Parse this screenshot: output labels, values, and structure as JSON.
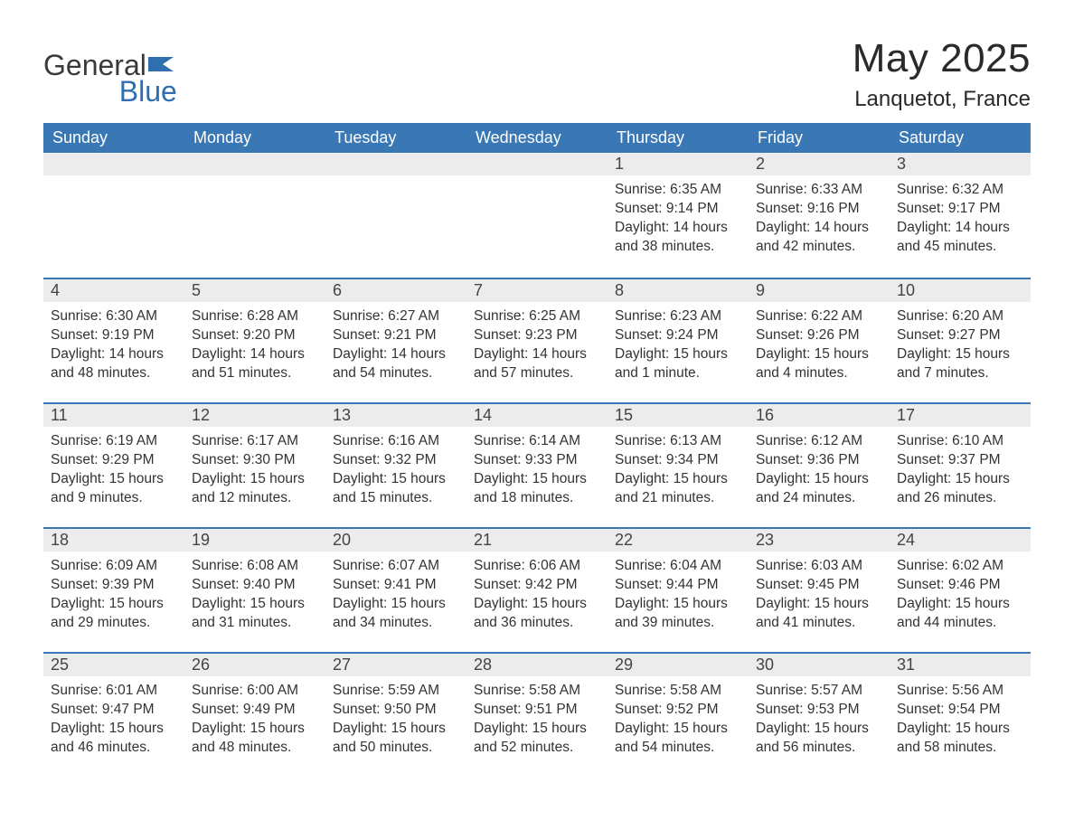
{
  "logo": {
    "line1": "General",
    "line2": "Blue"
  },
  "title": "May 2025",
  "location": "Lanquetot, France",
  "colors": {
    "header_bg": "#3a78b5",
    "header_text": "#ffffff",
    "daynum_bg": "#ececec",
    "border_top": "#3a78b5",
    "body_text": "#333333",
    "logo_gray": "#3a3a3a",
    "logo_blue": "#2f6fb0"
  },
  "weekdays": [
    "Sunday",
    "Monday",
    "Tuesday",
    "Wednesday",
    "Thursday",
    "Friday",
    "Saturday"
  ],
  "weeks": [
    [
      null,
      null,
      null,
      null,
      {
        "n": "1",
        "sr": "Sunrise: 6:35 AM",
        "ss": "Sunset: 9:14 PM",
        "dl1": "Daylight: 14 hours",
        "dl2": "and 38 minutes."
      },
      {
        "n": "2",
        "sr": "Sunrise: 6:33 AM",
        "ss": "Sunset: 9:16 PM",
        "dl1": "Daylight: 14 hours",
        "dl2": "and 42 minutes."
      },
      {
        "n": "3",
        "sr": "Sunrise: 6:32 AM",
        "ss": "Sunset: 9:17 PM",
        "dl1": "Daylight: 14 hours",
        "dl2": "and 45 minutes."
      }
    ],
    [
      {
        "n": "4",
        "sr": "Sunrise: 6:30 AM",
        "ss": "Sunset: 9:19 PM",
        "dl1": "Daylight: 14 hours",
        "dl2": "and 48 minutes."
      },
      {
        "n": "5",
        "sr": "Sunrise: 6:28 AM",
        "ss": "Sunset: 9:20 PM",
        "dl1": "Daylight: 14 hours",
        "dl2": "and 51 minutes."
      },
      {
        "n": "6",
        "sr": "Sunrise: 6:27 AM",
        "ss": "Sunset: 9:21 PM",
        "dl1": "Daylight: 14 hours",
        "dl2": "and 54 minutes."
      },
      {
        "n": "7",
        "sr": "Sunrise: 6:25 AM",
        "ss": "Sunset: 9:23 PM",
        "dl1": "Daylight: 14 hours",
        "dl2": "and 57 minutes."
      },
      {
        "n": "8",
        "sr": "Sunrise: 6:23 AM",
        "ss": "Sunset: 9:24 PM",
        "dl1": "Daylight: 15 hours",
        "dl2": "and 1 minute."
      },
      {
        "n": "9",
        "sr": "Sunrise: 6:22 AM",
        "ss": "Sunset: 9:26 PM",
        "dl1": "Daylight: 15 hours",
        "dl2": "and 4 minutes."
      },
      {
        "n": "10",
        "sr": "Sunrise: 6:20 AM",
        "ss": "Sunset: 9:27 PM",
        "dl1": "Daylight: 15 hours",
        "dl2": "and 7 minutes."
      }
    ],
    [
      {
        "n": "11",
        "sr": "Sunrise: 6:19 AM",
        "ss": "Sunset: 9:29 PM",
        "dl1": "Daylight: 15 hours",
        "dl2": "and 9 minutes."
      },
      {
        "n": "12",
        "sr": "Sunrise: 6:17 AM",
        "ss": "Sunset: 9:30 PM",
        "dl1": "Daylight: 15 hours",
        "dl2": "and 12 minutes."
      },
      {
        "n": "13",
        "sr": "Sunrise: 6:16 AM",
        "ss": "Sunset: 9:32 PM",
        "dl1": "Daylight: 15 hours",
        "dl2": "and 15 minutes."
      },
      {
        "n": "14",
        "sr": "Sunrise: 6:14 AM",
        "ss": "Sunset: 9:33 PM",
        "dl1": "Daylight: 15 hours",
        "dl2": "and 18 minutes."
      },
      {
        "n": "15",
        "sr": "Sunrise: 6:13 AM",
        "ss": "Sunset: 9:34 PM",
        "dl1": "Daylight: 15 hours",
        "dl2": "and 21 minutes."
      },
      {
        "n": "16",
        "sr": "Sunrise: 6:12 AM",
        "ss": "Sunset: 9:36 PM",
        "dl1": "Daylight: 15 hours",
        "dl2": "and 24 minutes."
      },
      {
        "n": "17",
        "sr": "Sunrise: 6:10 AM",
        "ss": "Sunset: 9:37 PM",
        "dl1": "Daylight: 15 hours",
        "dl2": "and 26 minutes."
      }
    ],
    [
      {
        "n": "18",
        "sr": "Sunrise: 6:09 AM",
        "ss": "Sunset: 9:39 PM",
        "dl1": "Daylight: 15 hours",
        "dl2": "and 29 minutes."
      },
      {
        "n": "19",
        "sr": "Sunrise: 6:08 AM",
        "ss": "Sunset: 9:40 PM",
        "dl1": "Daylight: 15 hours",
        "dl2": "and 31 minutes."
      },
      {
        "n": "20",
        "sr": "Sunrise: 6:07 AM",
        "ss": "Sunset: 9:41 PM",
        "dl1": "Daylight: 15 hours",
        "dl2": "and 34 minutes."
      },
      {
        "n": "21",
        "sr": "Sunrise: 6:06 AM",
        "ss": "Sunset: 9:42 PM",
        "dl1": "Daylight: 15 hours",
        "dl2": "and 36 minutes."
      },
      {
        "n": "22",
        "sr": "Sunrise: 6:04 AM",
        "ss": "Sunset: 9:44 PM",
        "dl1": "Daylight: 15 hours",
        "dl2": "and 39 minutes."
      },
      {
        "n": "23",
        "sr": "Sunrise: 6:03 AM",
        "ss": "Sunset: 9:45 PM",
        "dl1": "Daylight: 15 hours",
        "dl2": "and 41 minutes."
      },
      {
        "n": "24",
        "sr": "Sunrise: 6:02 AM",
        "ss": "Sunset: 9:46 PM",
        "dl1": "Daylight: 15 hours",
        "dl2": "and 44 minutes."
      }
    ],
    [
      {
        "n": "25",
        "sr": "Sunrise: 6:01 AM",
        "ss": "Sunset: 9:47 PM",
        "dl1": "Daylight: 15 hours",
        "dl2": "and 46 minutes."
      },
      {
        "n": "26",
        "sr": "Sunrise: 6:00 AM",
        "ss": "Sunset: 9:49 PM",
        "dl1": "Daylight: 15 hours",
        "dl2": "and 48 minutes."
      },
      {
        "n": "27",
        "sr": "Sunrise: 5:59 AM",
        "ss": "Sunset: 9:50 PM",
        "dl1": "Daylight: 15 hours",
        "dl2": "and 50 minutes."
      },
      {
        "n": "28",
        "sr": "Sunrise: 5:58 AM",
        "ss": "Sunset: 9:51 PM",
        "dl1": "Daylight: 15 hours",
        "dl2": "and 52 minutes."
      },
      {
        "n": "29",
        "sr": "Sunrise: 5:58 AM",
        "ss": "Sunset: 9:52 PM",
        "dl1": "Daylight: 15 hours",
        "dl2": "and 54 minutes."
      },
      {
        "n": "30",
        "sr": "Sunrise: 5:57 AM",
        "ss": "Sunset: 9:53 PM",
        "dl1": "Daylight: 15 hours",
        "dl2": "and 56 minutes."
      },
      {
        "n": "31",
        "sr": "Sunrise: 5:56 AM",
        "ss": "Sunset: 9:54 PM",
        "dl1": "Daylight: 15 hours",
        "dl2": "and 58 minutes."
      }
    ]
  ]
}
